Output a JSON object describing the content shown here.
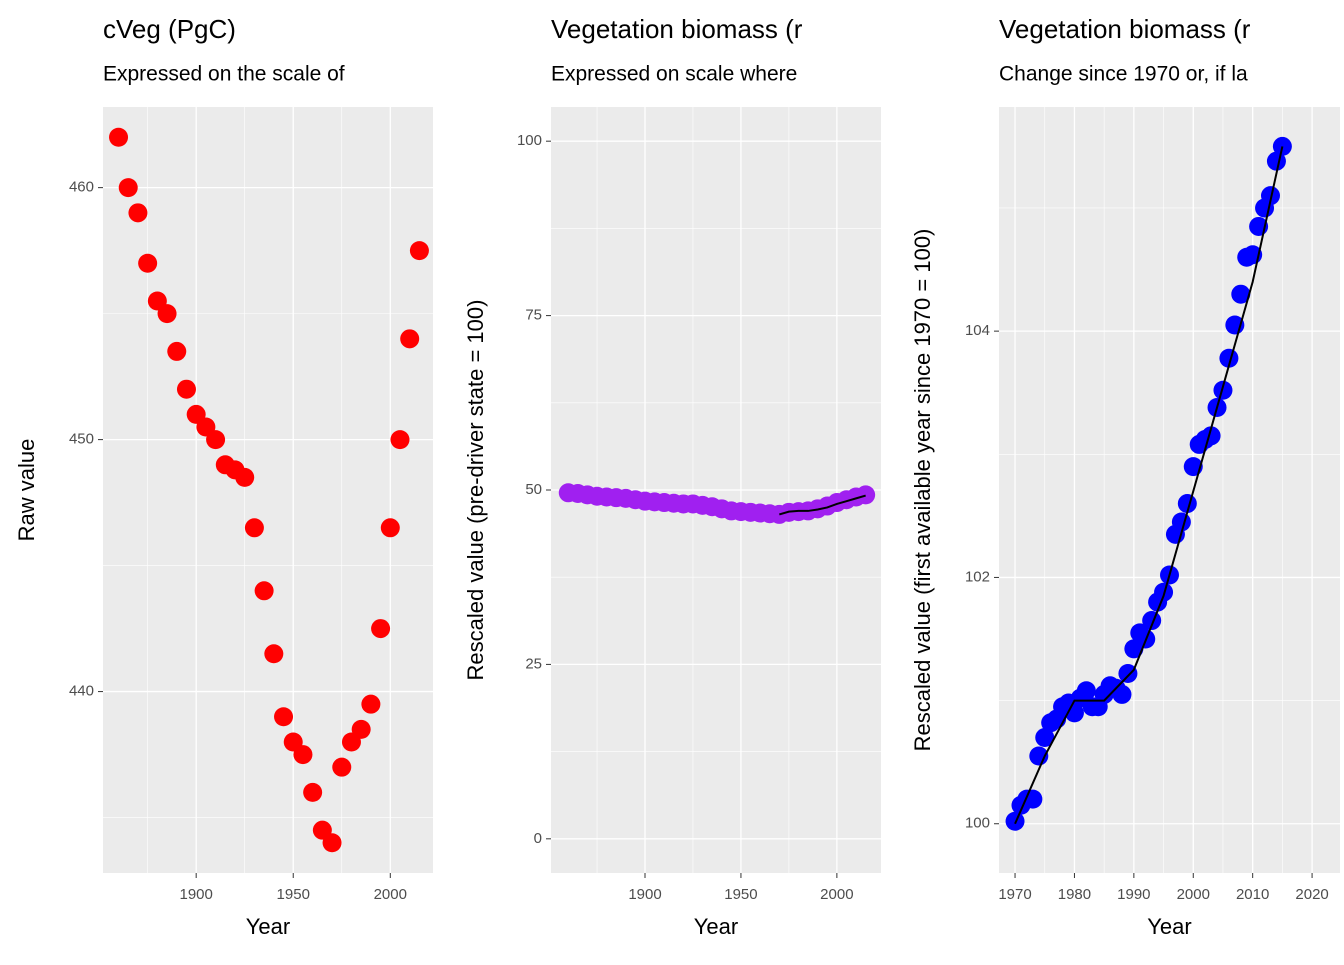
{
  "chart_data": [
    {
      "type": "scatter",
      "title": "cVeg (PgC)",
      "subtitle": "Expressed on the scale of",
      "xlabel": "Year",
      "ylabel": "Raw value",
      "xlim": [
        1852,
        2022
      ],
      "ylim": [
        432.8,
        463.2
      ],
      "xticks": [
        1900,
        1950,
        2000
      ],
      "yticks": [
        440,
        450,
        460
      ],
      "grid": true,
      "series": [
        {
          "kind": "points",
          "color": "#ff0000",
          "x": [
            1860,
            1865,
            1870,
            1875,
            1880,
            1885,
            1890,
            1895,
            1900,
            1905,
            1910,
            1915,
            1920,
            1925,
            1930,
            1935,
            1940,
            1945,
            1950,
            1955,
            1960,
            1965,
            1970,
            1975,
            1980,
            1985,
            1990,
            1995,
            2000,
            2005,
            2010,
            2015
          ],
          "values": [
            462,
            460,
            459,
            457,
            455.5,
            455,
            453.5,
            452,
            451,
            450.5,
            450,
            449,
            448.8,
            448.5,
            446.5,
            444,
            441.5,
            439,
            438,
            437.5,
            436,
            434.5,
            434,
            437,
            438,
            438.5,
            439.5,
            442.5,
            446.5,
            450,
            454,
            457.5
          ]
        }
      ]
    },
    {
      "type": "scatter",
      "title": "Vegetation biomass (r",
      "subtitle": "Expressed on scale where",
      "xlabel": "Year",
      "ylabel": "Rescaled value (pre-driver state = 100)",
      "xlim": [
        1851,
        2023
      ],
      "ylim": [
        -4.9,
        104.9
      ],
      "xticks": [
        1900,
        1950,
        2000
      ],
      "yticks": [
        0,
        25,
        50,
        75,
        100
      ],
      "grid": true,
      "series": [
        {
          "kind": "points",
          "color": "#a020f0",
          "x": [
            1860,
            1865,
            1870,
            1875,
            1880,
            1885,
            1890,
            1895,
            1900,
            1905,
            1910,
            1915,
            1920,
            1925,
            1930,
            1935,
            1940,
            1945,
            1950,
            1955,
            1960,
            1965,
            1970,
            1975,
            1980,
            1985,
            1990,
            1995,
            2000,
            2005,
            2010,
            2015
          ],
          "values": [
            49.6,
            49.5,
            49.3,
            49.1,
            49,
            48.9,
            48.8,
            48.6,
            48.4,
            48.3,
            48.2,
            48.1,
            48,
            48,
            47.8,
            47.6,
            47.3,
            47,
            46.9,
            46.8,
            46.7,
            46.6,
            46.5,
            46.8,
            46.9,
            47,
            47.3,
            47.7,
            48.2,
            48.6,
            49,
            49.3
          ]
        },
        {
          "kind": "line",
          "color": "#000000",
          "x": [
            1970,
            1975,
            1980,
            1985,
            1990,
            1995,
            2000,
            2005,
            2010,
            2015
          ],
          "values": [
            46.5,
            46.9,
            47,
            47,
            47.2,
            47.5,
            48,
            48.4,
            48.8,
            49.2
          ]
        }
      ]
    },
    {
      "type": "scatter",
      "title": "Vegetation biomass (r",
      "subtitle": "Change since 1970 or, if la",
      "xlabel": "Year",
      "ylabel": "Rescaled value (first available year since 1970 = 100)",
      "xlim": [
        1967.3,
        2024.7
      ],
      "ylim": [
        99.6,
        105.82
      ],
      "xticks": [
        1970,
        1980,
        1990,
        2000,
        2010,
        2020
      ],
      "yticks": [
        100,
        102,
        104
      ],
      "grid": true,
      "series": [
        {
          "kind": "points",
          "color": "#0000ff",
          "x": [
            1970,
            1971,
            1972,
            1973,
            1974,
            1975,
            1976,
            1977,
            1978,
            1979,
            1980,
            1981,
            1982,
            1983,
            1984,
            1985,
            1986,
            1987,
            1988,
            1989,
            1990,
            1991,
            1992,
            1993,
            1994,
            1995,
            1996,
            1997,
            1998,
            1999,
            2000,
            2001,
            2002,
            2003,
            2004,
            2005,
            2006,
            2007,
            2008,
            2009,
            2010,
            2011,
            2012,
            2013,
            2014,
            2015
          ],
          "values": [
            100.02,
            100.15,
            100.2,
            100.2,
            100.55,
            100.7,
            100.82,
            100.85,
            100.95,
            100.98,
            100.9,
            101.02,
            101.08,
            100.95,
            100.95,
            101.05,
            101.12,
            101.1,
            101.05,
            101.22,
            101.42,
            101.55,
            101.5,
            101.65,
            101.8,
            101.88,
            102.02,
            102.35,
            102.45,
            102.6,
            102.9,
            103.08,
            103.12,
            103.15,
            103.38,
            103.52,
            103.78,
            104.05,
            104.3,
            104.6,
            104.62,
            104.85,
            105,
            105.1,
            105.38,
            105.5
          ]
        },
        {
          "kind": "line",
          "color": "#000000",
          "x": [
            1970,
            1975,
            1980,
            1985,
            1990,
            1995,
            2000,
            2005,
            2010,
            2015
          ],
          "values": [
            100,
            100.55,
            101,
            101,
            101.25,
            101.85,
            102.7,
            103.55,
            104.4,
            105.5
          ]
        }
      ]
    }
  ]
}
